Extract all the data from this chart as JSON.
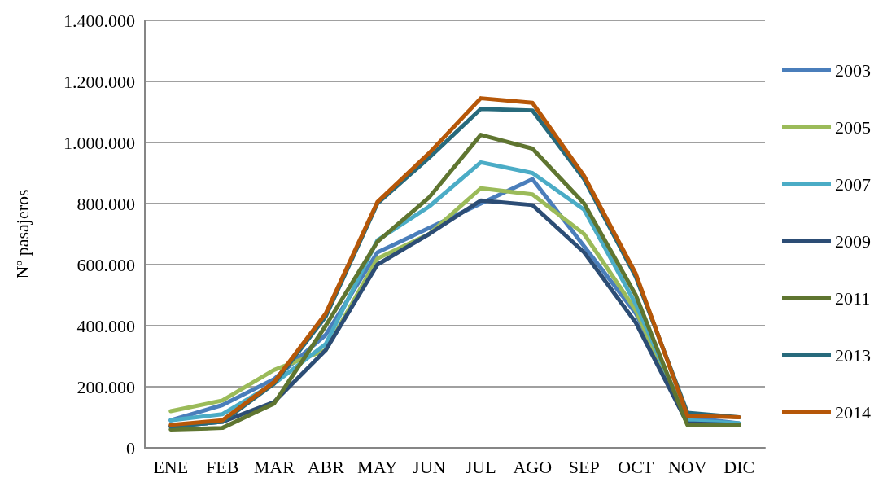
{
  "chart_data": {
    "type": "line",
    "ylabel": "Nº pasajeros",
    "categories": [
      "ENE",
      "FEB",
      "MAR",
      "ABR",
      "MAY",
      "JUN",
      "JUL",
      "AGO",
      "SEP",
      "OCT",
      "NOV",
      "DIC"
    ],
    "series": [
      {
        "name": "2003",
        "color": "#4a7ebb",
        "values": [
          90000,
          140000,
          225000,
          370000,
          640000,
          720000,
          800000,
          880000,
          660000,
          440000,
          100000,
          80000
        ]
      },
      {
        "name": "2005",
        "color": "#9bbb59",
        "values": [
          120000,
          155000,
          255000,
          320000,
          620000,
          700000,
          850000,
          830000,
          700000,
          450000,
          75000,
          75000
        ]
      },
      {
        "name": "2007",
        "color": "#4bacc6",
        "values": [
          90000,
          110000,
          210000,
          340000,
          680000,
          790000,
          935000,
          900000,
          780000,
          470000,
          90000,
          80000
        ]
      },
      {
        "name": "2009",
        "color": "#2c4d75",
        "values": [
          70000,
          85000,
          150000,
          320000,
          600000,
          700000,
          810000,
          795000,
          640000,
          410000,
          80000,
          75000
        ]
      },
      {
        "name": "2011",
        "color": "#5f7530",
        "values": [
          60000,
          65000,
          145000,
          400000,
          675000,
          820000,
          1025000,
          980000,
          800000,
          500000,
          75000,
          75000
        ]
      },
      {
        "name": "2013",
        "color": "#276a7c",
        "values": [
          70000,
          85000,
          210000,
          430000,
          800000,
          950000,
          1110000,
          1105000,
          880000,
          560000,
          115000,
          100000
        ]
      },
      {
        "name": "2014",
        "color": "#b65708",
        "values": [
          75000,
          90000,
          215000,
          440000,
          805000,
          965000,
          1145000,
          1130000,
          890000,
          570000,
          105000,
          100000
        ]
      }
    ],
    "ylim": [
      0,
      1400000
    ],
    "yticks": [
      0,
      {
        "value": 200000,
        "label": "200.000"
      },
      {
        "value": 400000,
        "label": "400.000"
      },
      {
        "value": 600000,
        "label": "600.000"
      },
      {
        "value": 800000,
        "label": "800.000"
      },
      {
        "value": 1000000,
        "label": "1.000.000"
      },
      {
        "value": 1200000,
        "label": "1.200.000"
      },
      {
        "value": 1400000,
        "label": "1.400.000"
      }
    ],
    "grid": "y",
    "legend": "right",
    "marker": "none",
    "line_style": "solid"
  }
}
